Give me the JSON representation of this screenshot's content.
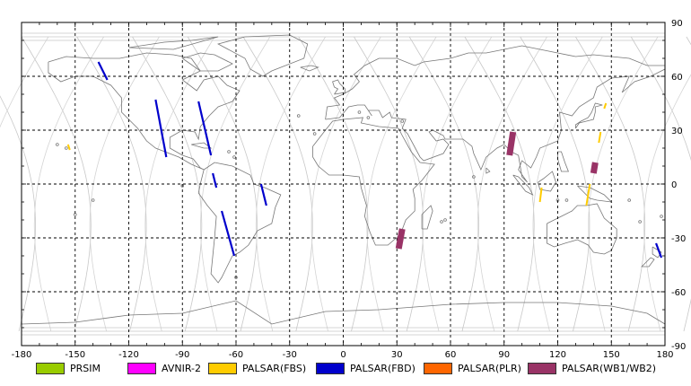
{
  "axes": {
    "x_ticks": [
      "-180",
      "-150",
      "-120",
      "-90",
      "-60",
      "-30",
      "0",
      "30",
      "60",
      "90",
      "120",
      "150",
      "180"
    ],
    "y_ticks": [
      "90",
      "60",
      "30",
      "0",
      "-30",
      "-60",
      "-90"
    ]
  },
  "legend": {
    "items": [
      {
        "label": "PRSIM",
        "color": "#99cc00"
      },
      {
        "label": "AVNIR-2",
        "color": "#ff00ff"
      },
      {
        "label": "PALSAR(FBS)",
        "color": "#ffcc00"
      },
      {
        "label": "PALSAR(FBD)",
        "color": "#0000cc"
      },
      {
        "label": "PALSAR(PLR)",
        "color": "#ff6600"
      },
      {
        "label": "PALSAR(WB1/WB2)",
        "color": "#993366"
      }
    ]
  },
  "observations": [
    {
      "mode": "PALSAR(FBD)",
      "color": "#0000cc",
      "from": [
        -137,
        68
      ],
      "to": [
        -132,
        58
      ]
    },
    {
      "mode": "PALSAR(FBD)",
      "color": "#0000cc",
      "from": [
        -105,
        47
      ],
      "to": [
        -99,
        15
      ]
    },
    {
      "mode": "PALSAR(FBD)",
      "color": "#0000cc",
      "from": [
        -81,
        46
      ],
      "to": [
        -74,
        16
      ]
    },
    {
      "mode": "PALSAR(FBD)",
      "color": "#0000cc",
      "from": [
        -73,
        6
      ],
      "to": [
        -71,
        -2
      ]
    },
    {
      "mode": "PALSAR(FBD)",
      "color": "#0000cc",
      "from": [
        -46,
        0
      ],
      "to": [
        -43,
        -12
      ]
    },
    {
      "mode": "PALSAR(FBD)",
      "color": "#0000cc",
      "from": [
        -68,
        -15
      ],
      "to": [
        -61,
        -40
      ]
    },
    {
      "mode": "PALSAR(FBD)",
      "color": "#0000cc",
      "from": [
        175,
        -33
      ],
      "to": [
        178,
        -41
      ]
    },
    {
      "mode": "PALSAR(FBS)",
      "color": "#ffcc00",
      "from": [
        -154,
        22
      ],
      "to": [
        -153,
        19
      ]
    },
    {
      "mode": "PALSAR(FBS)",
      "color": "#ffcc00",
      "from": [
        144,
        29
      ],
      "to": [
        143,
        23
      ]
    },
    {
      "mode": "PALSAR(FBS)",
      "color": "#ffcc00",
      "from": [
        147,
        45
      ],
      "to": [
        146,
        42
      ]
    },
    {
      "mode": "PALSAR(FBS)",
      "color": "#ffcc00",
      "from": [
        111,
        -2
      ],
      "to": [
        110,
        -10
      ]
    },
    {
      "mode": "PALSAR(FBS)",
      "color": "#ffcc00",
      "from": [
        138,
        0
      ],
      "to": [
        136,
        -12
      ]
    },
    {
      "mode": "PALSAR(WB1/WB2)",
      "color": "#993366",
      "from": [
        95,
        29
      ],
      "to": [
        93,
        16
      ]
    },
    {
      "mode": "PALSAR(WB1/WB2)",
      "color": "#993366",
      "from": [
        141,
        12
      ],
      "to": [
        140,
        6
      ]
    },
    {
      "mode": "PALSAR(WB1/WB2)",
      "color": "#993366",
      "from": [
        33,
        -25
      ],
      "to": [
        31,
        -36
      ]
    }
  ]
}
